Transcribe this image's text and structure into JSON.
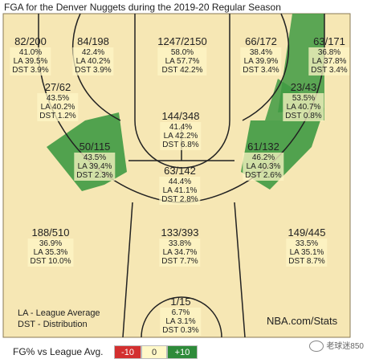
{
  "title": "FGA for the Denver Nuggets during the 2019-20 Regular Season",
  "chart_data": {
    "type": "shot-zone-map",
    "zones": [
      {
        "id": "left-corner-3",
        "label": "82/200",
        "fg": "41.0%",
        "la": "LA 39.5%",
        "dst": "DST 3.9%",
        "color": "#fdf5c6"
      },
      {
        "id": "left-wing-3",
        "label": "84/198",
        "fg": "42.4%",
        "la": "LA 40.2%",
        "dst": "DST 3.9%",
        "color": "#fdf5c6"
      },
      {
        "id": "top-key-3",
        "label": "1247/2150",
        "fg": "58.0%",
        "la": "LA 57.7%",
        "dst": "DST 42.2%",
        "color": "#fdf5c6"
      },
      {
        "id": "right-wing-3",
        "label": "66/172",
        "fg": "38.4%",
        "la": "LA 39.9%",
        "dst": "DST 3.4%",
        "color": "#fdf5c6"
      },
      {
        "id": "right-corner-3",
        "label": "63/171",
        "fg": "36.8%",
        "la": "LA 37.8%",
        "dst": "DST 3.4%",
        "color": "#3f9a43"
      },
      {
        "id": "left-baseline-mid",
        "label": "27/62",
        "fg": "43.5%",
        "la": "LA 40.2%",
        "dst": "DST 1.2%",
        "color": "#fdf5c6"
      },
      {
        "id": "right-baseline-mid",
        "label": "23/43",
        "fg": "53.5%",
        "la": "LA 40.7%",
        "dst": "DST 0.8%",
        "color": "#3f9a43"
      },
      {
        "id": "paint-top",
        "label": "144/348",
        "fg": "41.4%",
        "la": "LA 42.2%",
        "dst": "DST 6.8%",
        "color": "#fdf5c6"
      },
      {
        "id": "left-mid",
        "label": "50/115",
        "fg": "43.5%",
        "la": "LA 39.4%",
        "dst": "DST 2.3%",
        "color": "#3f9a43"
      },
      {
        "id": "right-mid",
        "label": "61/132",
        "fg": "46.2%",
        "la": "LA 40.3%",
        "dst": "DST 2.6%",
        "color": "#3f9a43"
      },
      {
        "id": "center-mid",
        "label": "63/142",
        "fg": "44.4%",
        "la": "LA 41.1%",
        "dst": "DST 2.8%",
        "color": "#fdf5c6"
      },
      {
        "id": "left-long",
        "label": "188/510",
        "fg": "36.9%",
        "la": "LA 35.3%",
        "dst": "DST 10.0%",
        "color": "#fdf5c6"
      },
      {
        "id": "center-long",
        "label": "133/393",
        "fg": "33.8%",
        "la": "LA 34.7%",
        "dst": "DST 7.7%",
        "color": "#fdf5c6"
      },
      {
        "id": "right-long",
        "label": "149/445",
        "fg": "33.5%",
        "la": "LA 35.1%",
        "dst": "DST 8.7%",
        "color": "#fdf5c6"
      },
      {
        "id": "backcourt",
        "label": "1/15",
        "fg": "6.7%",
        "la": "LA 3.1%",
        "dst": "DST 0.3%",
        "color": "#fdf5c6"
      }
    ],
    "notes": [
      "LA - League Average",
      "DST - Distribution"
    ],
    "source": "NBA.com/Stats"
  },
  "legend": {
    "label": "FG% vs League Avg.",
    "neg": "-10",
    "mid": "0",
    "pos": "+10"
  },
  "watermark": "老球迷850",
  "colors": {
    "wood": "#f6e7b4",
    "green": "#3f9a43",
    "label_bg": "#fdf5c6"
  }
}
